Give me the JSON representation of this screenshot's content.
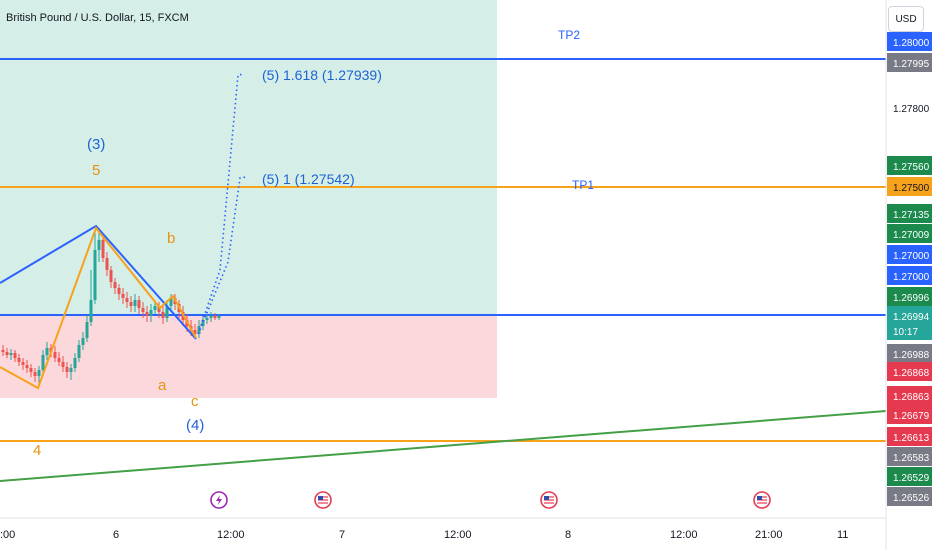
{
  "header": {
    "title": "British Pound / U.S. Dollar, 15, FXCM",
    "currency_button": "USD"
  },
  "colors": {
    "blue": "#2962ff",
    "orange": "#f7a21b",
    "green_line": "#43a047",
    "profit_zone": "#d5eee7",
    "loss_zone": "#fbd8db",
    "wave_blue": "#1e63d6",
    "wave_orange": "#e59412",
    "bull": "#26a69a",
    "bear": "#ef5350"
  },
  "chart_data": {
    "type": "line",
    "title": "British Pound / U.S. Dollar, 15, FXCM",
    "ylim": [
      1.2647,
      1.2808
    ],
    "x_tick_labels": [
      ":00",
      "6",
      "12:00",
      "7",
      "12:00",
      "8",
      "12:00",
      "21:00",
      "11"
    ],
    "horizontal_lines": [
      {
        "name": "TP2",
        "price": 1.27995,
        "color": "#2962ff"
      },
      {
        "name": "TP1",
        "price": 1.275,
        "color": "#f7a21b"
      },
      {
        "name": "",
        "price": 1.26994,
        "color": "#2962ff"
      },
      {
        "name": "",
        "price": 1.26613,
        "color": "#f7a21b"
      }
    ],
    "zones": [
      {
        "name": "profit",
        "from": 1.26994,
        "to": 1.2808
      },
      {
        "name": "loss",
        "from": 1.26856,
        "to": 1.26994
      }
    ],
    "trendline": {
      "from_price": 1.26525,
      "to_price": 1.26685
    },
    "projections": [
      {
        "label": "(5) 1.618 (1.27939)",
        "price": 1.27939
      },
      {
        "label": "(5) 1 (1.27542)",
        "price": 1.27542
      }
    ],
    "wave_labels": [
      {
        "text": "(3)",
        "color": "blue"
      },
      {
        "text": "5",
        "color": "orange"
      },
      {
        "text": "b",
        "color": "orange"
      },
      {
        "text": "a",
        "color": "orange"
      },
      {
        "text": "c",
        "color": "orange"
      },
      {
        "text": "(4)",
        "color": "blue"
      },
      {
        "text": "4",
        "color": "orange"
      }
    ],
    "price_axis": [
      {
        "text": "1.28000",
        "bg": "#2962ff",
        "fg": "#ffffff"
      },
      {
        "text": "1.27995",
        "bg": "#787b86",
        "fg": "#ffffff"
      },
      {
        "text": "1.27800",
        "bg": "",
        "fg": "#131722"
      },
      {
        "text": "1.27560",
        "bg": "#1b8a4c",
        "fg": "#ffffff"
      },
      {
        "text": "1.27500",
        "bg": "#f7a21b",
        "fg": "#131722"
      },
      {
        "text": "1.27135",
        "bg": "#1b8a4c",
        "fg": "#ffffff"
      },
      {
        "text": "1.27009",
        "bg": "#1b8a4c",
        "fg": "#ffffff"
      },
      {
        "text": "1.27000",
        "bg": "#2962ff",
        "fg": "#ffffff"
      },
      {
        "text": "1.27000",
        "bg": "#2962ff",
        "fg": "#ffffff"
      },
      {
        "text": "1.26996",
        "bg": "#1b8a4c",
        "fg": "#ffffff"
      },
      {
        "text": "1.26994",
        "bg": "#26a69a",
        "fg": "#ffffff",
        "sub": "10:17"
      },
      {
        "text": "1.26988",
        "bg": "#787b86",
        "fg": "#ffffff"
      },
      {
        "text": "1.26868",
        "bg": "#e53950",
        "fg": "#ffffff"
      },
      {
        "text": "1.26863",
        "bg": "#e53950",
        "fg": "#ffffff"
      },
      {
        "text": "1.26679",
        "bg": "#e53950",
        "fg": "#ffffff"
      },
      {
        "text": "1.26613",
        "bg": "#e53950",
        "fg": "#ffffff"
      },
      {
        "text": "1.26583",
        "bg": "#787b86",
        "fg": "#ffffff"
      },
      {
        "text": "1.26529",
        "bg": "#1b8a4c",
        "fg": "#ffffff"
      },
      {
        "text": "1.26526",
        "bg": "#787b86",
        "fg": "#ffffff"
      }
    ],
    "events": [
      {
        "name": "lightning-event-icon"
      },
      {
        "name": "us-flag-event-icon"
      },
      {
        "name": "us-flag-event-icon"
      },
      {
        "name": "us-flag-event-icon"
      }
    ]
  }
}
